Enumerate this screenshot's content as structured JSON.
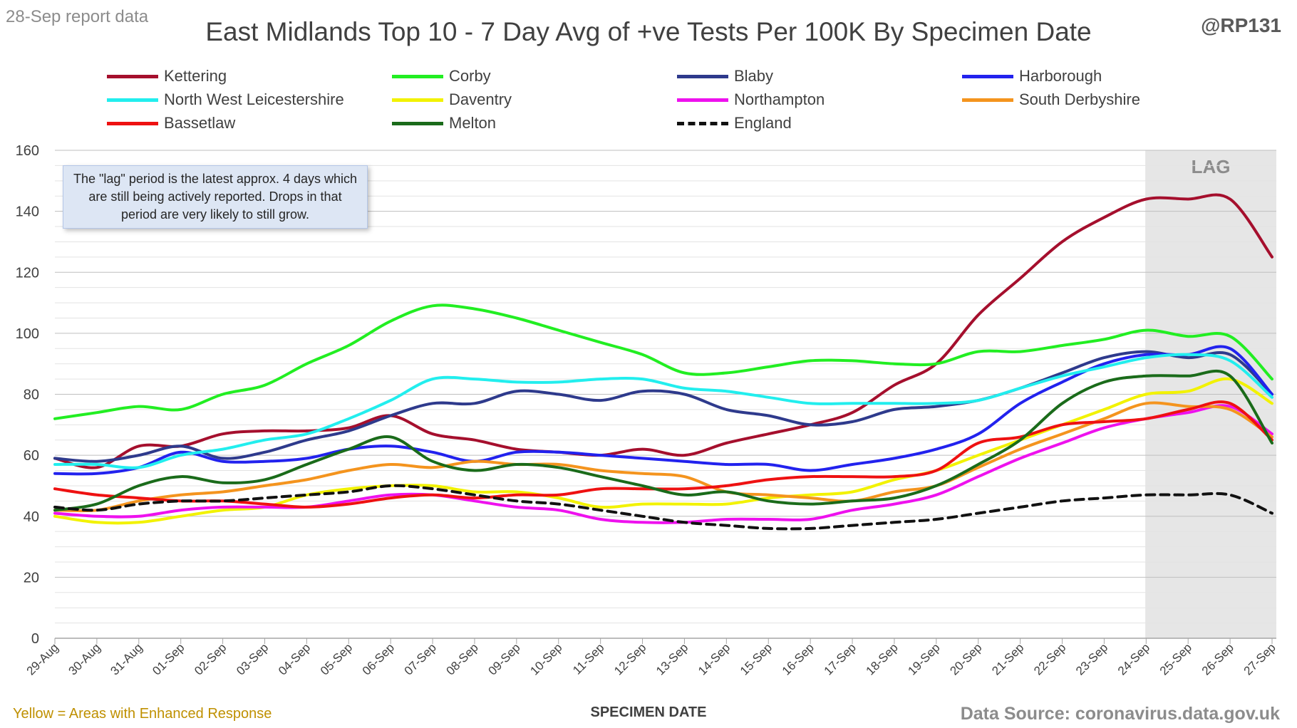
{
  "header": {
    "report_date": "28-Sep report data",
    "handle": "@RP131"
  },
  "footer": {
    "note": "Yellow = Areas with Enhanced Response",
    "source": "Data Source: coronavirus.data.gov.uk"
  },
  "note_box": "The \"lag\" period is the latest approx. 4 days which are still being actively reported. Drops in that period are very likely to still grow.",
  "lag_label": "LAG",
  "chart_data": {
    "type": "line",
    "title": "East Midlands Top 10 - 7 Day Avg of +ve Tests Per 100K By Specimen Date",
    "xlabel": "SPECIMEN DATE",
    "ylabel": "",
    "ylim": [
      0,
      160
    ],
    "yticks": [
      0,
      20,
      40,
      60,
      80,
      100,
      120,
      140,
      160
    ],
    "grid": "horizontal",
    "legend_position": "top",
    "lag_period": [
      "24-Sep",
      "27-Sep"
    ],
    "categories": [
      "29-Aug",
      "30-Aug",
      "31-Aug",
      "01-Sep",
      "02-Sep",
      "03-Sep",
      "04-Sep",
      "05-Sep",
      "06-Sep",
      "07-Sep",
      "08-Sep",
      "09-Sep",
      "10-Sep",
      "11-Sep",
      "12-Sep",
      "13-Sep",
      "14-Sep",
      "15-Sep",
      "16-Sep",
      "17-Sep",
      "18-Sep",
      "19-Sep",
      "20-Sep",
      "21-Sep",
      "22-Sep",
      "23-Sep",
      "24-Sep",
      "25-Sep",
      "26-Sep",
      "27-Sep"
    ],
    "series": [
      {
        "name": "Kettering",
        "color": "#a50f2d",
        "dash": false,
        "values": [
          59,
          56,
          63,
          63,
          67,
          68,
          68,
          69,
          73,
          67,
          65,
          62,
          61,
          60,
          62,
          60,
          64,
          67,
          70,
          74,
          83,
          90,
          106,
          118,
          130,
          138,
          144,
          144,
          144,
          125
        ]
      },
      {
        "name": "Corby",
        "color": "#22ee22",
        "dash": false,
        "values": [
          72,
          74,
          76,
          75,
          80,
          83,
          90,
          96,
          104,
          109,
          108,
          105,
          101,
          97,
          93,
          87,
          87,
          89,
          91,
          91,
          90,
          90,
          94,
          94,
          96,
          98,
          101,
          99,
          99,
          85
        ]
      },
      {
        "name": "Blaby",
        "color": "#2e3a8c",
        "dash": false,
        "values": [
          59,
          58,
          60,
          63,
          59,
          61,
          65,
          68,
          73,
          77,
          77,
          81,
          80,
          78,
          81,
          80,
          75,
          73,
          70,
          71,
          75,
          76,
          78,
          82,
          87,
          92,
          94,
          92,
          93,
          80
        ]
      },
      {
        "name": "Harborough",
        "color": "#2222ee",
        "dash": false,
        "values": [
          54,
          54,
          56,
          61,
          58,
          58,
          59,
          62,
          63,
          61,
          58,
          61,
          61,
          60,
          59,
          58,
          57,
          57,
          55,
          57,
          59,
          62,
          67,
          77,
          84,
          90,
          93,
          93,
          95,
          80
        ]
      },
      {
        "name": "North West Leicestershire",
        "color": "#22eeee",
        "dash": false,
        "values": [
          57,
          57,
          56,
          60,
          62,
          65,
          67,
          72,
          78,
          85,
          85,
          84,
          84,
          85,
          85,
          82,
          81,
          79,
          77,
          77,
          77,
          77,
          78,
          82,
          86,
          89,
          92,
          93,
          91,
          79
        ]
      },
      {
        "name": "Daventry",
        "color": "#f2f200",
        "dash": false,
        "values": [
          40,
          38,
          38,
          40,
          42,
          43,
          47,
          49,
          50,
          50,
          48,
          48,
          46,
          43,
          44,
          44,
          44,
          46,
          47,
          48,
          52,
          55,
          60,
          65,
          70,
          75,
          80,
          81,
          85,
          77
        ]
      },
      {
        "name": "Northampton",
        "color": "#ee11ee",
        "dash": false,
        "values": [
          41,
          40,
          40,
          42,
          43,
          43,
          43,
          45,
          47,
          47,
          45,
          43,
          42,
          39,
          38,
          38,
          39,
          39,
          39,
          42,
          44,
          47,
          53,
          59,
          64,
          69,
          72,
          74,
          76,
          67
        ]
      },
      {
        "name": "South Derbyshire",
        "color": "#f4941e",
        "dash": false,
        "values": [
          42,
          42,
          45,
          47,
          48,
          50,
          52,
          55,
          57,
          56,
          58,
          57,
          57,
          55,
          54,
          53,
          48,
          47,
          46,
          45,
          48,
          50,
          56,
          62,
          67,
          72,
          77,
          76,
          75,
          66
        ]
      },
      {
        "name": "Bassetlaw",
        "color": "#ee1111",
        "dash": false,
        "values": [
          49,
          47,
          46,
          45,
          45,
          44,
          43,
          44,
          46,
          47,
          46,
          47,
          47,
          49,
          49,
          49,
          50,
          52,
          53,
          53,
          53,
          55,
          64,
          66,
          70,
          71,
          72,
          75,
          77,
          65
        ]
      },
      {
        "name": "Melton",
        "color": "#1a6b1a",
        "dash": false,
        "values": [
          42,
          44,
          50,
          53,
          51,
          52,
          57,
          62,
          66,
          58,
          55,
          57,
          56,
          53,
          50,
          47,
          48,
          45,
          44,
          45,
          46,
          50,
          57,
          65,
          77,
          84,
          86,
          86,
          86,
          64
        ]
      },
      {
        "name": "England",
        "color": "#111111",
        "dash": true,
        "values": [
          43,
          42,
          44,
          45,
          45,
          46,
          47,
          48,
          50,
          49,
          47,
          45,
          44,
          42,
          40,
          38,
          37,
          36,
          36,
          37,
          38,
          39,
          41,
          43,
          45,
          46,
          47,
          47,
          47,
          41
        ]
      }
    ]
  }
}
